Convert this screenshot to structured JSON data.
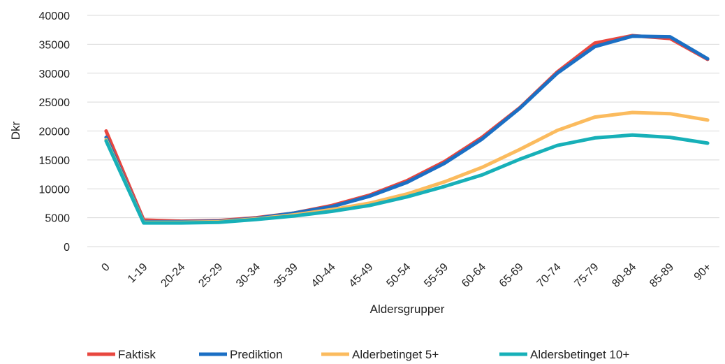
{
  "chart_data": {
    "type": "line",
    "title": "",
    "xlabel": "Aldersgrupper",
    "ylabel": "Dkr",
    "categories": [
      "0",
      "1-19",
      "20-24",
      "25-29",
      "30-34",
      "35-39",
      "40-44",
      "45-49",
      "50-54",
      "55-59",
      "60-64",
      "65-69",
      "70-74",
      "75-79",
      "80-84",
      "85-89",
      "90+"
    ],
    "y_ticks": [
      "0",
      "5000",
      "10000",
      "15000",
      "20000",
      "25000",
      "30000",
      "35000",
      "40000"
    ],
    "ylim": [
      0,
      40000
    ],
    "grid": true,
    "legend_position": "bottom",
    "series": [
      {
        "name": "Faktisk",
        "color": "#E8473F",
        "values": [
          20000,
          4600,
          4400,
          4500,
          5000,
          5800,
          7100,
          8900,
          11400,
          14700,
          18900,
          24000,
          30200,
          35200,
          36500,
          36000,
          32400
        ]
      },
      {
        "name": "Prediktion",
        "color": "#1B6FC4",
        "values": [
          18900,
          4300,
          4300,
          4400,
          4900,
          5800,
          6900,
          8700,
          11100,
          14400,
          18600,
          23900,
          30000,
          34600,
          36400,
          36300,
          32500
        ]
      },
      {
        "name": "Alderbetinget 5+",
        "color": "#FBBB5E",
        "values": [
          18500,
          4200,
          4200,
          4300,
          4800,
          5500,
          6400,
          7500,
          9100,
          11200,
          13700,
          16800,
          20100,
          22400,
          23200,
          23000,
          21900
        ]
      },
      {
        "name": "Aldersbetinget 10+",
        "color": "#17B0B8",
        "values": [
          18300,
          4100,
          4100,
          4200,
          4700,
          5300,
          6100,
          7100,
          8600,
          10400,
          12400,
          15100,
          17500,
          18800,
          19300,
          18900,
          17900
        ]
      }
    ]
  }
}
